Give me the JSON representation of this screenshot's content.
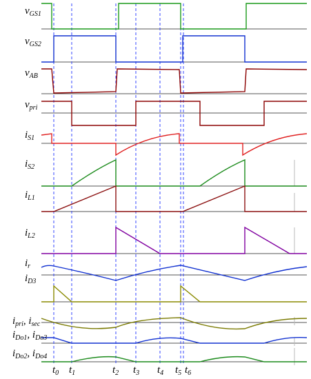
{
  "signals": [
    {
      "parts": [
        {
          "text": "v"
        },
        {
          "text": "GS1",
          "sub": true
        }
      ]
    },
    {
      "parts": [
        {
          "text": "v"
        },
        {
          "text": "GS2",
          "sub": true
        }
      ]
    },
    {
      "parts": [
        {
          "text": "v"
        },
        {
          "text": "AB",
          "sub": true
        }
      ]
    },
    {
      "parts": [
        {
          "text": "v"
        },
        {
          "text": "pri",
          "sub": true
        }
      ]
    },
    {
      "parts": [
        {
          "text": "i"
        },
        {
          "text": "S1",
          "sub": true
        }
      ]
    },
    {
      "parts": [
        {
          "text": "i"
        },
        {
          "text": "S2",
          "sub": true
        }
      ]
    },
    {
      "parts": [
        {
          "text": "i"
        },
        {
          "text": "L1",
          "sub": true
        }
      ]
    },
    {
      "parts": [
        {
          "text": "i"
        },
        {
          "text": "L2",
          "sub": true
        }
      ]
    },
    {
      "parts": [
        {
          "text": "i"
        },
        {
          "text": "r",
          "sub": true
        }
      ]
    },
    {
      "parts": [
        {
          "text": "i"
        },
        {
          "text": "D3",
          "sub": true
        }
      ]
    },
    {
      "parts": [
        {
          "text": "i"
        },
        {
          "text": "pri",
          "sub": true
        },
        {
          "text": ", i"
        },
        {
          "text": "sec",
          "sub": true
        }
      ]
    },
    {
      "parts": [
        {
          "text": "i"
        },
        {
          "text": "Do1",
          "sub": true
        },
        {
          "text": ", i"
        },
        {
          "text": "Do3",
          "sub": true
        }
      ]
    },
    {
      "parts": [
        {
          "text": "i"
        },
        {
          "text": "Do2",
          "sub": true
        },
        {
          "text": ", i"
        },
        {
          "text": "Do4",
          "sub": true
        }
      ]
    }
  ],
  "times": [
    {
      "parts": [
        {
          "text": "t"
        },
        {
          "text": "0",
          "sub": true
        }
      ]
    },
    {
      "parts": [
        {
          "text": "t"
        },
        {
          "text": "1",
          "sub": true
        }
      ]
    },
    {
      "parts": [
        {
          "text": "t"
        },
        {
          "text": "2",
          "sub": true
        }
      ]
    },
    {
      "parts": [
        {
          "text": "t"
        },
        {
          "text": "3",
          "sub": true
        }
      ]
    },
    {
      "parts": [
        {
          "text": "t"
        },
        {
          "text": "4",
          "sub": true
        }
      ]
    },
    {
      "parts": [
        {
          "text": "t"
        },
        {
          "text": "5",
          "sub": true
        }
      ]
    },
    {
      "parts": [
        {
          "text": "t"
        },
        {
          "text": "6",
          "sub": true
        }
      ]
    }
  ]
}
